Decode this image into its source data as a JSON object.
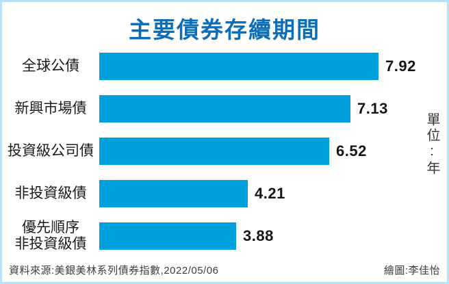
{
  "title": "主要債券存續期間",
  "unit_label": "單位:年",
  "footer": {
    "source": "資料來源:美銀美林系列債券指數,2022/05/06",
    "credit": "繪圖:李佳怡"
  },
  "colors": {
    "bar": "#00a0df",
    "title_text": "#0d6eb8",
    "frame_border": "#b5e3f5",
    "label_text": "#1a1a1a",
    "value_text": "#151515",
    "footer_text": "#3c3c3c"
  },
  "chart_data": {
    "type": "bar",
    "orientation": "horizontal",
    "title": "主要債券存續期間",
    "unit": "年",
    "categories": [
      "全球公債",
      "新興市場債",
      "投資級公司債",
      "非投資級債",
      "優先順序\n非投資級債"
    ],
    "values": [
      7.92,
      7.13,
      6.52,
      4.21,
      3.88
    ],
    "value_labels": [
      "7.92",
      "7.13",
      "6.52",
      "4.21",
      "3.88"
    ],
    "xlim": [
      0,
      8
    ],
    "grid": false,
    "legend": false,
    "value_label_position": "right-of-bar"
  }
}
